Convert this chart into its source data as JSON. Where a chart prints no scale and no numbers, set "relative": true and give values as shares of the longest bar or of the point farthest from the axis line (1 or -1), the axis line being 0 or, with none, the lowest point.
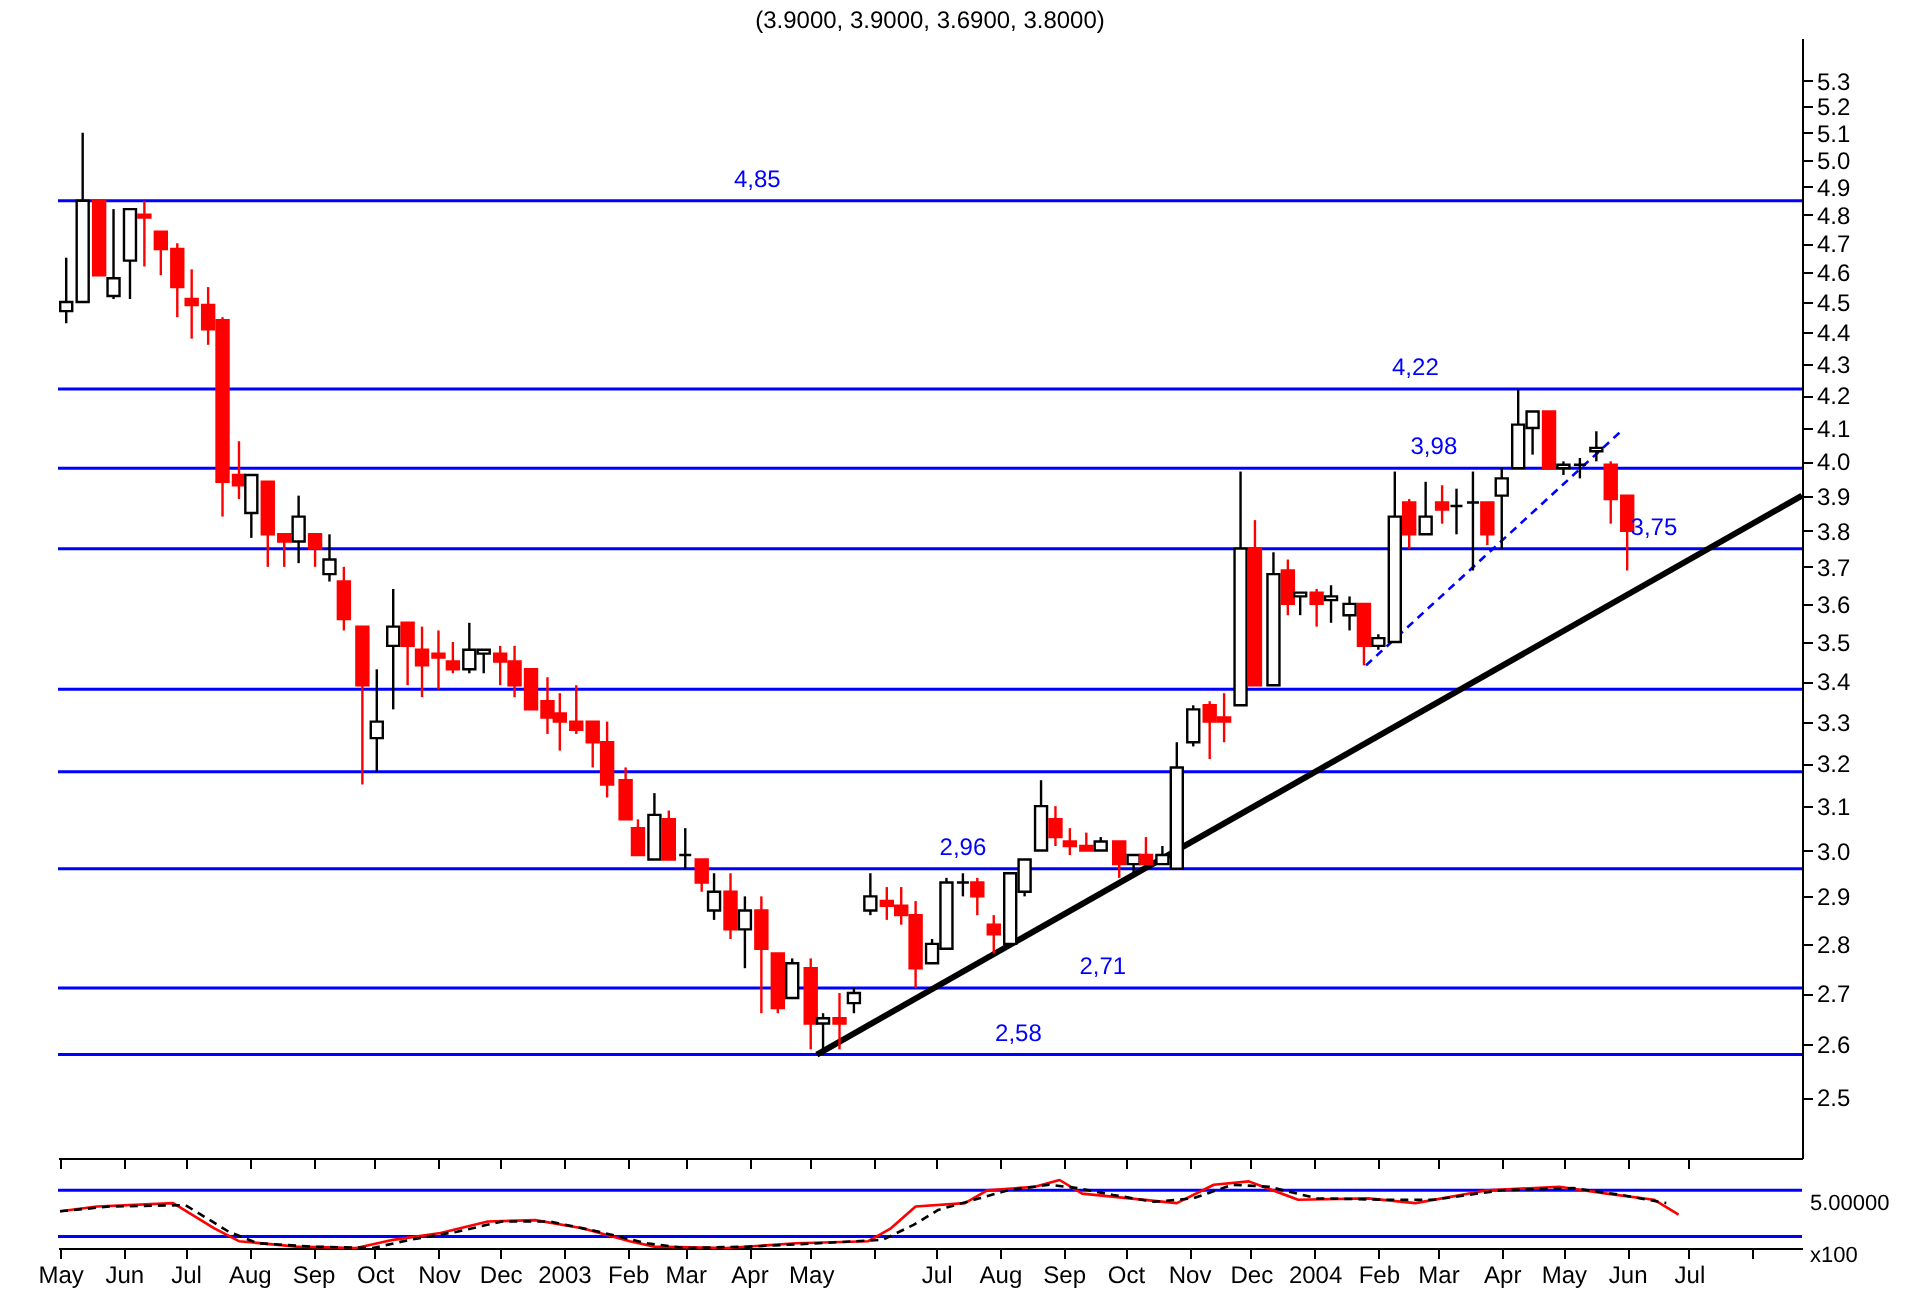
{
  "chart_data": [
    {
      "type": "candlestick",
      "title": "(3.9000, 3.9000, 3.6900, 3.8000)",
      "log": true,
      "tick_labels": "y",
      "xlim": [
        "2002-04-30",
        "2004-08-25"
      ],
      "xticks": [
        "2002-05-01",
        "2002-06-01",
        "2002-07-01",
        "2002-08-01",
        "2002-09-01",
        "2002-10-01",
        "2002-11-01",
        "2002-12-01",
        "2003-01-01",
        "2003-02-01",
        "2003-03-01",
        "2003-04-01",
        "2003-05-01",
        "2003-06-01",
        "2003-07-01",
        "2003-08-01",
        "2003-09-01",
        "2003-10-01",
        "2003-11-01",
        "2003-12-01",
        "2004-01-01",
        "2004-02-01",
        "2004-03-01",
        "2004-04-01",
        "2004-05-01",
        "2004-06-01",
        "2004-07-01"
      ],
      "ylim": [
        2.39,
        5.47
      ],
      "yticks": [
        2.5,
        2.6,
        2.7,
        2.8,
        2.9,
        {
          "value": 3,
          "label": "3.0"
        },
        3.1,
        3.2,
        3.3,
        3.4,
        3.5,
        3.6,
        3.7,
        3.8,
        3.9,
        {
          "value": 4,
          "label": "4.0"
        },
        4.1,
        4.2,
        4.3,
        4.4,
        4.5,
        4.6,
        4.7,
        4.8,
        4.9,
        {
          "value": 5,
          "label": "5.0"
        },
        5.1,
        5.2,
        5.3
      ],
      "series": [
        {
          "type": "candlestick",
          "x": [
            "2002-05-04",
            "2002-05-12",
            "2002-05-20",
            "2002-05-27",
            "2002-06-04",
            "2002-06-11",
            "2002-06-19",
            "2002-06-27",
            "2002-07-04",
            "2002-07-12",
            "2002-07-19",
            "2002-07-27",
            "2002-08-02",
            "2002-08-10",
            "2002-08-18",
            "2002-08-25",
            "2002-09-02",
            "2002-09-09",
            "2002-09-16",
            "2002-09-25",
            "2002-10-02",
            "2002-10-10",
            "2002-10-17",
            "2002-10-24",
            "2002-11-01",
            "2002-11-08",
            "2002-11-16",
            "2002-11-23",
            "2002-12-01",
            "2002-12-08",
            "2002-12-16",
            "2002-12-24",
            "2002-12-30",
            "2003-01-07",
            "2003-01-15",
            "2003-01-22",
            "2003-01-31",
            "2003-02-06",
            "2003-02-14",
            "2003-02-21",
            "2003-03-01",
            "2003-03-09",
            "2003-03-15",
            "2003-03-23",
            "2003-03-30",
            "2003-04-07",
            "2003-04-15",
            "2003-04-22",
            "2003-05-01",
            "2003-05-07",
            "2003-05-15",
            "2003-05-22",
            "2003-05-30",
            "2003-06-07",
            "2003-06-14",
            "2003-06-21",
            "2003-06-29",
            "2003-07-06",
            "2003-07-14",
            "2003-07-21",
            "2003-07-29",
            "2003-08-06",
            "2003-08-13",
            "2003-08-21",
            "2003-08-28",
            "2003-09-04",
            "2003-09-12",
            "2003-09-19",
            "2003-09-28",
            "2003-10-05",
            "2003-10-11",
            "2003-10-19",
            "2003-10-26",
            "2003-11-03",
            "2003-11-11",
            "2003-11-18",
            "2003-11-26",
            "2003-12-03",
            "2003-12-12",
            "2003-12-19",
            "2003-12-25",
            "2004-01-02",
            "2004-01-09",
            "2004-01-18",
            "2004-01-25",
            "2004-02-01",
            "2004-02-09",
            "2004-02-16",
            "2004-02-24",
            "2004-03-03",
            "2004-03-10",
            "2004-03-18",
            "2004-03-25",
            "2004-04-01",
            "2004-04-09",
            "2004-04-16",
            "2004-04-24",
            "2004-05-01",
            "2004-05-09",
            "2004-05-17",
            "2004-05-24",
            "2004-06-01"
          ],
          "ohlc": [
            [
              4.47,
              4.65,
              4.43,
              4.5
            ],
            [
              4.5,
              5.1,
              4.5,
              4.85
            ],
            [
              4.85,
              4.85,
              4.59,
              4.59
            ],
            [
              4.52,
              4.82,
              4.51,
              4.58
            ],
            [
              4.64,
              4.82,
              4.51,
              4.82
            ],
            [
              4.8,
              4.85,
              4.62,
              4.79
            ],
            [
              4.74,
              4.74,
              4.59,
              4.68
            ],
            [
              4.68,
              4.7,
              4.45,
              4.55
            ],
            [
              4.51,
              4.61,
              4.38,
              4.49
            ],
            [
              4.49,
              4.55,
              4.36,
              4.41
            ],
            [
              4.44,
              4.45,
              3.84,
              3.94
            ],
            [
              3.96,
              4.06,
              3.89,
              3.93
            ],
            [
              3.85,
              3.96,
              3.78,
              3.96
            ],
            [
              3.94,
              3.94,
              3.7,
              3.79
            ],
            [
              3.79,
              3.79,
              3.7,
              3.77
            ],
            [
              3.77,
              3.9,
              3.71,
              3.84
            ],
            [
              3.79,
              3.79,
              3.7,
              3.75
            ],
            [
              3.68,
              3.79,
              3.66,
              3.72
            ],
            [
              3.66,
              3.7,
              3.53,
              3.56
            ],
            [
              3.54,
              3.54,
              3.15,
              3.39
            ],
            [
              3.26,
              3.43,
              3.18,
              3.3
            ],
            [
              3.49,
              3.64,
              3.33,
              3.54
            ],
            [
              3.55,
              3.55,
              3.39,
              3.49
            ],
            [
              3.48,
              3.54,
              3.36,
              3.44
            ],
            [
              3.47,
              3.53,
              3.38,
              3.46
            ],
            [
              3.45,
              3.5,
              3.42,
              3.43
            ],
            [
              3.43,
              3.55,
              3.42,
              3.48
            ],
            [
              3.47,
              3.48,
              3.42,
              3.48
            ],
            [
              3.47,
              3.49,
              3.39,
              3.45
            ],
            [
              3.45,
              3.49,
              3.36,
              3.39
            ],
            [
              3.43,
              3.43,
              3.33,
              3.33
            ],
            [
              3.35,
              3.41,
              3.27,
              3.31
            ],
            [
              3.32,
              3.37,
              3.23,
              3.3
            ],
            [
              3.3,
              3.39,
              3.27,
              3.28
            ],
            [
              3.3,
              3.3,
              3.19,
              3.25
            ],
            [
              3.25,
              3.3,
              3.12,
              3.15
            ],
            [
              3.16,
              3.19,
              3.07,
              3.07
            ],
            [
              3.05,
              3.07,
              2.99,
              2.99
            ],
            [
              2.98,
              3.13,
              2.98,
              3.08
            ],
            [
              3.07,
              3.09,
              2.98,
              2.98
            ],
            [
              2.99,
              3.05,
              2.96,
              2.99
            ],
            [
              2.98,
              2.98,
              2.91,
              2.93
            ],
            [
              2.87,
              2.95,
              2.85,
              2.91
            ],
            [
              2.91,
              2.95,
              2.81,
              2.83
            ],
            [
              2.83,
              2.9,
              2.75,
              2.87
            ],
            [
              2.87,
              2.9,
              2.66,
              2.79
            ],
            [
              2.78,
              2.78,
              2.66,
              2.67
            ],
            [
              2.69,
              2.77,
              2.69,
              2.76
            ],
            [
              2.75,
              2.77,
              2.59,
              2.64
            ],
            [
              2.64,
              2.66,
              2.58,
              2.65
            ],
            [
              2.65,
              2.7,
              2.59,
              2.64
            ],
            [
              2.68,
              2.71,
              2.66,
              2.7
            ],
            [
              2.87,
              2.95,
              2.86,
              2.9
            ],
            [
              2.89,
              2.92,
              2.85,
              2.88
            ],
            [
              2.88,
              2.92,
              2.84,
              2.86
            ],
            [
              2.86,
              2.89,
              2.71,
              2.75
            ],
            [
              2.76,
              2.81,
              2.76,
              2.8
            ],
            [
              2.79,
              2.94,
              2.79,
              2.93
            ],
            [
              2.93,
              2.95,
              2.9,
              2.93
            ],
            [
              2.93,
              2.94,
              2.86,
              2.9
            ],
            [
              2.84,
              2.86,
              2.78,
              2.82
            ],
            [
              2.8,
              2.95,
              2.8,
              2.95
            ],
            [
              2.91,
              2.98,
              2.9,
              2.98
            ],
            [
              3.0,
              3.16,
              3.0,
              3.1
            ],
            [
              3.07,
              3.1,
              3.01,
              3.03
            ],
            [
              3.02,
              3.05,
              2.99,
              3.01
            ],
            [
              3.01,
              3.04,
              3.0,
              3.0
            ],
            [
              3.0,
              3.03,
              3.0,
              3.02
            ],
            [
              3.02,
              3.02,
              2.94,
              2.97
            ],
            [
              2.97,
              2.99,
              2.95,
              2.99
            ],
            [
              2.99,
              3.03,
              2.97,
              2.97
            ],
            [
              2.97,
              3.01,
              2.97,
              2.99
            ],
            [
              2.96,
              3.25,
              2.96,
              3.19
            ],
            [
              3.25,
              3.34,
              3.24,
              3.33
            ],
            [
              3.34,
              3.35,
              3.21,
              3.3
            ],
            [
              3.31,
              3.37,
              3.25,
              3.3
            ],
            [
              3.34,
              3.97,
              3.34,
              3.75
            ],
            [
              3.75,
              3.83,
              3.39,
              3.39
            ],
            [
              3.39,
              3.74,
              3.39,
              3.68
            ],
            [
              3.69,
              3.72,
              3.57,
              3.6
            ],
            [
              3.62,
              3.63,
              3.57,
              3.63
            ],
            [
              3.63,
              3.64,
              3.54,
              3.6
            ],
            [
              3.61,
              3.65,
              3.55,
              3.62
            ],
            [
              3.57,
              3.62,
              3.53,
              3.6
            ],
            [
              3.6,
              3.6,
              3.44,
              3.49
            ],
            [
              3.49,
              3.52,
              3.48,
              3.51
            ],
            [
              3.5,
              3.97,
              3.5,
              3.84
            ],
            [
              3.88,
              3.89,
              3.75,
              3.79
            ],
            [
              3.79,
              3.94,
              3.79,
              3.84
            ],
            [
              3.88,
              3.93,
              3.82,
              3.86
            ],
            [
              3.87,
              3.92,
              3.79,
              3.87
            ],
            [
              3.88,
              3.97,
              3.69,
              3.88
            ],
            [
              3.88,
              3.88,
              3.76,
              3.79
            ],
            [
              3.9,
              3.98,
              3.75,
              3.95
            ],
            [
              3.98,
              4.22,
              3.98,
              4.11
            ],
            [
              4.1,
              4.15,
              4.02,
              4.15
            ],
            [
              4.15,
              4.15,
              3.98,
              3.98
            ],
            [
              3.98,
              4.0,
              3.96,
              3.99
            ],
            [
              3.99,
              4.01,
              3.95,
              3.99
            ],
            [
              4.03,
              4.09,
              4.0,
              4.04
            ],
            [
              3.99,
              4.0,
              3.82,
              3.89
            ],
            [
              3.9,
              3.9,
              3.69,
              3.8
            ]
          ]
        },
        {
          "type": "line",
          "color": "#000000",
          "line_style": "solid",
          "x": [
            "2003-05-04",
            "2004-08-25"
          ],
          "values": [
            2.58,
            3.9
          ]
        },
        {
          "type": "line",
          "color": "#0000ff",
          "line_style": "dashed",
          "x": [
            "2004-01-26",
            "2004-05-29"
          ],
          "values": [
            3.44,
            4.09
          ]
        }
      ],
      "ref_lines": [
        {
          "axis": "y",
          "value": 4.85,
          "color": "#0000ff"
        },
        {
          "axis": "y",
          "value": 4.22,
          "color": "#0000ff"
        },
        {
          "axis": "y",
          "value": 3.98,
          "color": "#0000ff"
        },
        {
          "axis": "y",
          "value": 3.75,
          "color": "#0000ff"
        },
        {
          "axis": "y",
          "value": 3.38,
          "color": "#0000ff"
        },
        {
          "axis": "y",
          "value": 3.18,
          "color": "#0000ff"
        },
        {
          "axis": "y",
          "value": 2.96,
          "color": "#0000ff"
        },
        {
          "axis": "y",
          "value": 2.71,
          "color": "#0000ff"
        },
        {
          "axis": "y",
          "value": 2.58,
          "color": "#0000ff"
        }
      ],
      "annotations": [
        {
          "text": "4,85",
          "x": "2003-04-05",
          "y": 4.85
        },
        {
          "text": "4,22",
          "x": "2004-02-19",
          "y": 4.22
        },
        {
          "text": "3,98",
          "x": "2004-02-28",
          "y": 3.98
        },
        {
          "text": "3,75",
          "x": "2004-06-14",
          "y": 3.75
        },
        {
          "text": "2,96",
          "x": "2003-07-14",
          "y": 2.96
        },
        {
          "text": "2,71",
          "x": "2003-09-20",
          "y": 2.71
        },
        {
          "text": "2,58",
          "x": "2003-08-10",
          "y": 2.58
        }
      ]
    },
    {
      "type": "line",
      "relative": true,
      "tick_labels": "x",
      "xlim": [
        "2002-04-30",
        "2004-08-25"
      ],
      "xticks": [
        {
          "value": "2002-05-01",
          "label": "May"
        },
        {
          "value": "2002-06-01",
          "label": "Jun"
        },
        {
          "value": "2002-07-01",
          "label": "Jul"
        },
        {
          "value": "2002-08-01",
          "label": "Aug"
        },
        {
          "value": "2002-09-01",
          "label": "Sep"
        },
        {
          "value": "2002-10-01",
          "label": "Oct"
        },
        {
          "value": "2002-11-01",
          "label": "Nov"
        },
        {
          "value": "2002-12-01",
          "label": "Dec"
        },
        {
          "value": "2003-01-01",
          "label": "2003"
        },
        {
          "value": "2003-02-01",
          "label": "Feb"
        },
        {
          "value": "2003-03-01",
          "label": "Mar"
        },
        {
          "value": "2003-04-01",
          "label": "Apr"
        },
        {
          "value": "2003-05-01",
          "label": "May"
        },
        {
          "value": "2003-06-01",
          "label": null
        },
        {
          "value": "2003-07-01",
          "label": "Jul"
        },
        {
          "value": "2003-08-01",
          "label": "Aug"
        },
        {
          "value": "2003-09-01",
          "label": "Sep"
        },
        {
          "value": "2003-10-01",
          "label": "Oct"
        },
        {
          "value": "2003-11-01",
          "label": "Nov"
        },
        {
          "value": "2003-12-01",
          "label": "Dec"
        },
        {
          "value": "2004-01-01",
          "label": "2004"
        },
        {
          "value": "2004-02-01",
          "label": "Feb"
        },
        {
          "value": "2004-03-01",
          "label": "Mar"
        },
        {
          "value": "2004-04-01",
          "label": "Apr"
        },
        {
          "value": "2004-05-01",
          "label": "May"
        },
        {
          "value": "2004-06-01",
          "label": "Jun"
        },
        {
          "value": "2004-07-01",
          "label": "Jul"
        },
        {
          "value": "2004-08-01",
          "label": null
        }
      ],
      "series": [
        {
          "color": "#ff0000",
          "line_style": "solid",
          "x": [
            "2002-05-01",
            "2002-05-19",
            "2002-06-25",
            "2002-07-15",
            "2002-07-27",
            "2002-08-24",
            "2002-09-22",
            "2002-10-10",
            "2002-11-02",
            "2002-11-25",
            "2002-12-18",
            "2003-01-10",
            "2003-02-02",
            "2003-02-14",
            "2003-03-21",
            "2003-04-24",
            "2003-05-29",
            "2003-06-09",
            "2003-06-21",
            "2003-07-15",
            "2003-07-26",
            "2003-08-18",
            "2003-08-30",
            "2003-09-10",
            "2003-10-03",
            "2003-10-26",
            "2003-11-13",
            "2003-11-30",
            "2003-12-24",
            "2004-01-27",
            "2004-02-19",
            "2004-03-25",
            "2004-04-29",
            "2004-05-22",
            "2004-06-14",
            "2004-06-26"
          ],
          "values": [
            0.54,
            0.61,
            0.66,
            0.29,
            0.1,
            0.02,
            0.0,
            0.12,
            0.22,
            0.39,
            0.41,
            0.29,
            0.1,
            0.02,
            0.0,
            0.07,
            0.1,
            0.29,
            0.61,
            0.66,
            0.85,
            0.9,
            1.0,
            0.8,
            0.73,
            0.66,
            0.93,
            0.98,
            0.71,
            0.73,
            0.66,
            0.85,
            0.9,
            0.8,
            0.71,
            0.49
          ]
        },
        {
          "color": "#000000",
          "line_style": "dashed",
          "x": [
            "2002-05-01",
            "2002-05-25",
            "2002-07-01",
            "2002-07-22",
            "2002-08-05",
            "2002-09-01",
            "2002-09-30",
            "2002-10-18",
            "2002-11-10",
            "2002-12-02",
            "2002-12-25",
            "2003-01-18",
            "2003-02-10",
            "2003-03-01",
            "2003-04-01",
            "2003-05-05",
            "2003-06-05",
            "2003-06-20",
            "2003-07-02",
            "2003-07-22",
            "2003-08-05",
            "2003-08-25",
            "2003-09-08",
            "2003-09-25",
            "2003-10-15",
            "2003-11-03",
            "2003-11-22",
            "2003-12-10",
            "2004-01-02",
            "2004-02-05",
            "2004-02-28",
            "2004-04-01",
            "2004-05-06",
            "2004-05-29",
            "2004-06-20"
          ],
          "values": [
            0.54,
            0.61,
            0.63,
            0.24,
            0.07,
            0.02,
            0.0,
            0.12,
            0.24,
            0.39,
            0.39,
            0.24,
            0.07,
            0.0,
            0.02,
            0.07,
            0.12,
            0.34,
            0.56,
            0.73,
            0.85,
            0.93,
            0.88,
            0.78,
            0.68,
            0.73,
            0.93,
            0.9,
            0.73,
            0.71,
            0.71,
            0.85,
            0.88,
            0.78,
            0.66
          ]
        }
      ],
      "ref_lines": [
        {
          "axis": "y",
          "value": 0.85,
          "color": "#0000ff"
        },
        {
          "axis": "y",
          "value": 0.17,
          "color": "#0000ff"
        }
      ],
      "annotations": [
        "5.00000",
        "x100"
      ]
    }
  ]
}
